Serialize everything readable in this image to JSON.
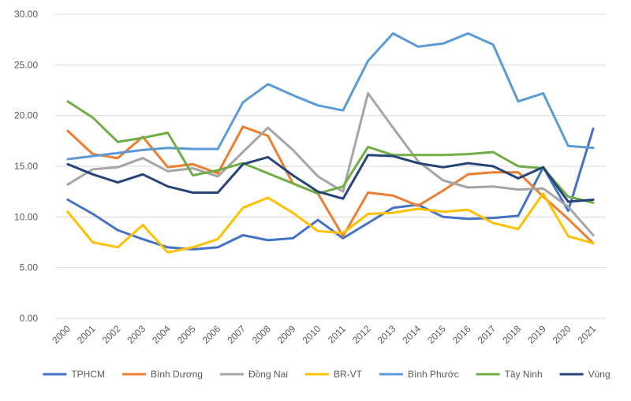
{
  "chart_data": {
    "type": "line",
    "title": "",
    "xlabel": "",
    "ylabel": "",
    "ylim": [
      0,
      30
    ],
    "y_ticks": [
      "0.00",
      "5.00",
      "10.00",
      "15.00",
      "20.00",
      "25.00",
      "30.00"
    ],
    "y_tick_values": [
      0,
      5,
      10,
      15,
      20,
      25,
      30
    ],
    "grid": "horizontal",
    "legend_position": "bottom",
    "categories": [
      "2000",
      "2001",
      "2002",
      "2003",
      "2004",
      "2005",
      "2006",
      "2007",
      "2008",
      "2009",
      "2010",
      "2011",
      "2012",
      "2013",
      "2014",
      "2015",
      "2016",
      "2017",
      "2018",
      "2019",
      "2020",
      "2021"
    ],
    "series": [
      {
        "name": "TPHCM",
        "color": "#4472C4",
        "values": [
          11.7,
          10.3,
          8.7,
          7.8,
          7.0,
          6.8,
          7.0,
          8.2,
          7.7,
          7.9,
          9.7,
          7.9,
          9.4,
          10.9,
          11.2,
          10.0,
          9.8,
          9.9,
          10.1,
          14.9,
          10.6,
          18.7
        ]
      },
      {
        "name": "Bình Dương",
        "color": "#ED7D31",
        "values": [
          18.5,
          16.2,
          15.8,
          17.9,
          14.9,
          15.2,
          14.3,
          18.9,
          18.0,
          13.3,
          12.3,
          8.1,
          12.4,
          12.1,
          11.1,
          12.6,
          14.2,
          14.4,
          14.4,
          12.0,
          9.8,
          7.4
        ]
      },
      {
        "name": "Đồng Nai",
        "color": "#A5A5A5",
        "values": [
          13.2,
          14.7,
          14.9,
          15.8,
          14.5,
          14.8,
          14.0,
          16.4,
          18.8,
          16.6,
          14.0,
          12.5,
          22.2,
          18.8,
          15.5,
          13.6,
          12.9,
          13.0,
          12.7,
          12.8,
          11.0,
          8.2
        ]
      },
      {
        "name": "BR-VT",
        "color": "#FFC000",
        "values": [
          10.5,
          7.5,
          7.0,
          9.2,
          6.5,
          7.0,
          7.8,
          10.9,
          11.9,
          10.4,
          8.6,
          8.4,
          10.3,
          10.4,
          10.8,
          10.5,
          10.7,
          9.4,
          8.8,
          12.3,
          8.1,
          7.4
        ]
      },
      {
        "name": "Bình Phước",
        "color": "#5B9BD5",
        "values": [
          15.7,
          16.0,
          16.3,
          16.6,
          16.8,
          16.7,
          16.7,
          21.3,
          23.1,
          22.0,
          21.0,
          20.5,
          25.4,
          28.1,
          26.8,
          27.1,
          28.1,
          27.0,
          21.4,
          22.2,
          17.0,
          16.8
        ]
      },
      {
        "name": "Tây Ninh",
        "color": "#70AD47",
        "values": [
          21.4,
          19.8,
          17.4,
          17.8,
          18.3,
          14.1,
          14.6,
          15.3,
          null,
          null,
          12.3,
          13.0,
          16.9,
          16.1,
          16.1,
          16.1,
          16.2,
          16.4,
          15.0,
          14.8,
          12.0,
          11.4
        ]
      },
      {
        "name": "Vùng",
        "color": "#264478",
        "values": [
          15.2,
          14.2,
          13.4,
          14.2,
          13.0,
          12.4,
          12.4,
          15.2,
          15.9,
          14.1,
          12.5,
          11.8,
          16.1,
          16.0,
          15.3,
          14.9,
          15.3,
          15.0,
          13.8,
          14.9,
          11.5,
          11.7
        ]
      }
    ]
  }
}
